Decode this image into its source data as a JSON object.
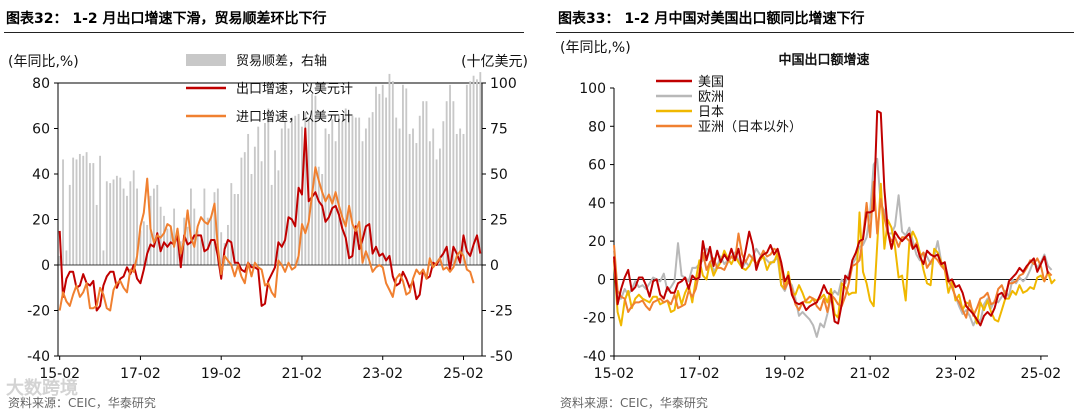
{
  "left": {
    "title": "图表32：  1-2 月出口增速下滑，贸易顺差环比下行",
    "source": "资料来源：CEIC，华泰研究",
    "watermark": "大数跨境"
  },
  "right": {
    "title": "图表33：  1-2 月中国对美国出口额同比增速下行",
    "source": "资料来源：CEIC，华泰研究"
  },
  "chart_data": [
    {
      "type": "bar+line",
      "ylabel_left": "(年同比,%)",
      "ylabel_right": "(十亿美元)",
      "ylim_left": [
        -40,
        80
      ],
      "yticks_left": [
        -40,
        -20,
        0,
        20,
        40,
        60,
        80
      ],
      "ylim_right": [
        -50,
        100
      ],
      "yticks_right": [
        -50,
        -25,
        0,
        25,
        50,
        75,
        100
      ],
      "xticks": [
        "15-02",
        "17-02",
        "19-02",
        "21-02",
        "23-02",
        "25-02"
      ],
      "x_start": "2015-02",
      "legend_position": "top-center",
      "series": [
        {
          "name": "贸易顺差，右轴",
          "type": "bar",
          "axis": "right",
          "color": "#c8c8c8",
          "values": [
            5,
            58,
            8,
            44,
            59,
            58,
            61,
            60,
            62,
            56,
            56,
            33,
            60,
            8,
            46,
            45,
            47,
            49,
            48,
            42,
            38,
            46,
            52,
            42,
            19,
            24,
            22,
            38,
            42,
            44,
            32,
            27,
            20,
            20,
            31,
            18,
            13,
            26,
            21,
            42,
            31,
            19,
            14,
            42,
            26,
            27,
            40,
            42,
            18,
            12,
            22,
            45,
            39,
            39,
            59,
            62,
            72,
            50,
            65,
            76,
            57,
            78,
            86,
            44,
            63,
            52,
            75,
            79,
            75,
            81,
            82,
            83,
            76,
            84,
            80,
            94,
            93,
            54,
            50,
            75,
            72,
            80,
            68,
            82,
            79,
            86,
            83,
            82,
            81,
            81,
            68,
            75,
            81,
            84,
            98,
            94,
            99,
            92,
            105,
            101,
            81,
            75,
            99,
            97,
            72,
            75,
            67,
            82,
            90,
            90,
            68,
            75,
            58,
            64,
            79,
            90,
            99,
            90,
            72,
            75,
            72,
            99,
            101,
            104,
            102,
            106
          ]
        },
        {
          "name": "出口增速，以美元计",
          "type": "line",
          "axis": "left",
          "color": "#c00000",
          "values": [
            15,
            -14,
            -6,
            -3,
            -3,
            -10,
            -9,
            -4,
            -8,
            -9,
            -7,
            -20,
            -18,
            -9,
            -5,
            -3,
            -3,
            -10,
            -6,
            -5,
            -1,
            -4,
            0,
            -6,
            -8,
            -2,
            5,
            9,
            8,
            14,
            6,
            10,
            8,
            10,
            9,
            13,
            -1,
            13,
            9,
            10,
            13,
            13,
            13,
            6,
            7,
            11,
            11,
            4,
            -6,
            7,
            11,
            10,
            1,
            1,
            -2,
            -3,
            1,
            -1,
            -1,
            -2,
            -18,
            -17,
            -7,
            -4,
            -1,
            10,
            8,
            11,
            21,
            20,
            17,
            34,
            31,
            60,
            28,
            30,
            32,
            28,
            26,
            19,
            21,
            25,
            26,
            22,
            16,
            12,
            3,
            4,
            17,
            7,
            11,
            17,
            18,
            5,
            8,
            4,
            5,
            2,
            4,
            -5,
            -9,
            -8,
            -3,
            -6,
            -10,
            -7,
            -15,
            -13,
            -2,
            -6,
            -5,
            1,
            0,
            3,
            5,
            8,
            -2,
            8,
            5,
            1,
            13,
            6,
            4,
            9,
            13,
            5
          ]
        },
        {
          "name": "进口增速，以美元计",
          "type": "line",
          "axis": "left",
          "color": "#f08030",
          "values": [
            -20,
            -12,
            -16,
            -18,
            -13,
            -9,
            -14,
            -12,
            -8,
            -19,
            -19,
            -18,
            -10,
            -13,
            -19,
            -20,
            -11,
            -8,
            -7,
            -10,
            -12,
            -2,
            -3,
            4,
            17,
            23,
            38,
            16,
            10,
            13,
            12,
            14,
            18,
            17,
            8,
            16,
            5,
            11,
            24,
            12,
            8,
            17,
            21,
            19,
            18,
            21,
            27,
            8,
            -4,
            4,
            2,
            0,
            -5,
            0,
            -5,
            -8,
            1,
            -5,
            1,
            -1,
            -2,
            -9,
            -8,
            -12,
            -14,
            2,
            0,
            -3,
            1,
            -2,
            -1,
            4,
            18,
            14,
            19,
            31,
            43,
            37,
            32,
            28,
            31,
            27,
            32,
            26,
            21,
            17,
            26,
            18,
            15,
            19,
            1,
            6,
            2,
            -3,
            -1,
            0,
            -1,
            -8,
            -11,
            -14,
            -6,
            -4,
            -7,
            -13,
            -12,
            -6,
            -2,
            -4,
            -2,
            -6,
            3,
            -1,
            1,
            3,
            -2,
            -1,
            -3,
            -1,
            4,
            6,
            4,
            -2,
            -3,
            -8
          ]
        }
      ]
    },
    {
      "type": "line",
      "title": "中国出口额增速",
      "ylabel": "(年同比,%)",
      "ylim": [
        -40,
        100
      ],
      "yticks": [
        -40,
        -20,
        0,
        20,
        40,
        60,
        80,
        100
      ],
      "xticks": [
        "15-02",
        "17-02",
        "19-02",
        "21-02",
        "23-02",
        "25-02"
      ],
      "x_start": "2015-02",
      "legend_position": "top-left",
      "series": [
        {
          "name": "美国",
          "color": "#c00000",
          "values": [
            12,
            -13,
            -5,
            1,
            5,
            -6,
            -4,
            1,
            1,
            -3,
            -9,
            -1,
            0,
            -8,
            -10,
            -4,
            -7,
            -7,
            -2,
            -1,
            1,
            -5,
            2,
            0,
            1,
            20,
            10,
            17,
            7,
            15,
            9,
            13,
            10,
            16,
            10,
            16,
            6,
            15,
            25,
            18,
            5,
            11,
            13,
            14,
            18,
            13,
            16,
            9,
            -1,
            2,
            -8,
            -12,
            -13,
            -12,
            -16,
            -14,
            -13,
            -12,
            -8,
            -3,
            -7,
            -8,
            -22,
            -23,
            -13,
            2,
            0,
            10,
            14,
            20,
            21,
            35,
            35,
            36,
            88,
            87,
            47,
            25,
            16,
            25,
            22,
            20,
            22,
            24,
            16,
            18,
            12,
            8,
            15,
            13,
            12,
            13,
            8,
            9,
            -1,
            0,
            -4,
            -3,
            -7,
            -14,
            -16,
            -18,
            -21,
            -24,
            -19,
            -17,
            -19,
            -15,
            -8,
            -7,
            -10,
            -1,
            1,
            3,
            6,
            4,
            7,
            9,
            11,
            4,
            8,
            12,
            3
          ]
        },
        {
          "name": "欧洲",
          "color": "#b8b8b8",
          "values": [
            15,
            -10,
            -10,
            -5,
            -8,
            -5,
            -1,
            -4,
            -3,
            -5,
            -2,
            1,
            0,
            -1,
            3,
            -6,
            -4,
            -1,
            19,
            2,
            1,
            -1,
            6,
            6,
            8,
            10,
            16,
            15,
            4,
            7,
            12,
            8,
            10,
            12,
            14,
            10,
            6,
            9,
            7,
            12,
            16,
            13,
            12,
            10,
            8,
            10,
            11,
            -3,
            -6,
            -1,
            -3,
            -10,
            -19,
            -17,
            -19,
            -21,
            -24,
            -30,
            -23,
            -25,
            -18,
            -9,
            -6,
            -8,
            0,
            -2,
            3,
            8,
            11,
            17,
            18,
            22,
            35,
            60,
            63,
            39,
            36,
            24,
            24,
            28,
            44,
            25,
            23,
            27,
            20,
            13,
            10,
            14,
            12,
            8,
            12,
            20,
            9,
            8,
            1,
            -4,
            -9,
            -14,
            -18,
            -16,
            -19,
            -24,
            -20,
            -22,
            -13,
            -10,
            -15,
            -11,
            -12,
            -9,
            -6,
            -9,
            0,
            -2,
            1,
            -1,
            1,
            5,
            10,
            6,
            9,
            13,
            7,
            5
          ]
        },
        {
          "name": "日本",
          "color": "#f0b800",
          "values": [
            10,
            -17,
            -24,
            -11,
            -6,
            -15,
            -10,
            -8,
            -10,
            -11,
            -12,
            -9,
            -9,
            -13,
            -12,
            -11,
            -17,
            -16,
            -6,
            -13,
            -7,
            -3,
            -12,
            0,
            10,
            2,
            0,
            9,
            2,
            6,
            9,
            15,
            11,
            8,
            12,
            9,
            6,
            5,
            7,
            11,
            8,
            10,
            12,
            5,
            9,
            9,
            14,
            -3,
            -5,
            4,
            -7,
            -8,
            -3,
            -7,
            -12,
            -12,
            -10,
            -11,
            -10,
            -8,
            -12,
            -5,
            -18,
            -20,
            -2,
            -4,
            -8,
            -7,
            -7,
            35,
            4,
            -2,
            -11,
            -14,
            18,
            50,
            16,
            31,
            27,
            17,
            1,
            2,
            -11,
            19,
            25,
            21,
            14,
            5,
            -2,
            -3,
            16,
            14,
            9,
            5,
            -7,
            -1,
            -11,
            -8,
            -16,
            -12,
            -13,
            -17,
            -23,
            -12,
            -16,
            -11,
            -17,
            -21,
            -22,
            -16,
            -10,
            -10,
            -6,
            -8,
            -3,
            -7,
            -6,
            -4,
            -5,
            1,
            2,
            -1,
            4,
            -2,
            0
          ]
        },
        {
          "name": "亚洲（日本以外）",
          "color": "#f08030",
          "values": [
            18,
            -6,
            -9,
            -10,
            -17,
            -14,
            -12,
            -12,
            -11,
            -14,
            -16,
            -12,
            -11,
            -10,
            -12,
            -11,
            -13,
            -8,
            -15,
            -14,
            -13,
            -6,
            -9,
            -5,
            4,
            14,
            5,
            9,
            11,
            6,
            6,
            5,
            9,
            12,
            10,
            24,
            13,
            9,
            13,
            11,
            8,
            11,
            15,
            12,
            13,
            16,
            15,
            7,
            -5,
            -1,
            -5,
            -13,
            -16,
            -12,
            -11,
            -9,
            -10,
            -14,
            -16,
            -10,
            -17,
            -8,
            -10,
            -13,
            -14,
            -9,
            -2,
            7,
            8,
            10,
            22,
            40,
            22,
            51,
            24,
            42,
            32,
            24,
            20,
            22,
            17,
            22,
            22,
            20,
            16,
            19,
            12,
            14,
            6,
            9,
            12,
            10,
            7,
            5,
            -1,
            -4,
            -9,
            -12,
            -16,
            -20,
            -11,
            -19,
            -15,
            -10,
            -9,
            -7,
            -13,
            -12,
            -5,
            -3,
            -8,
            -2,
            -2,
            -1,
            2,
            3,
            6,
            10,
            8,
            11,
            7,
            -1,
            4,
            2
          ]
        }
      ]
    }
  ]
}
